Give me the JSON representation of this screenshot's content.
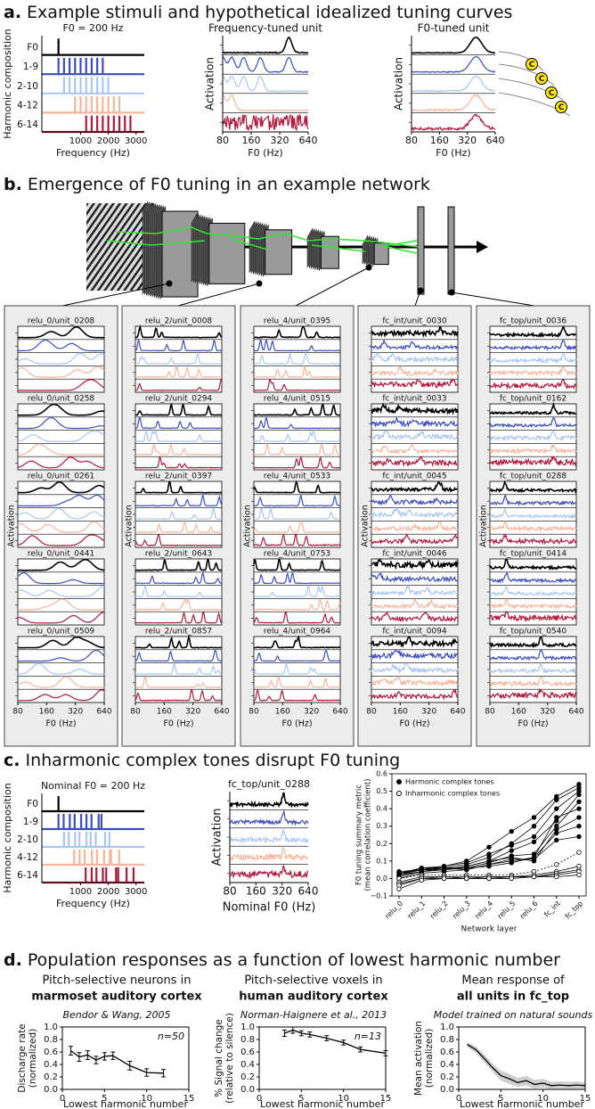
{
  "panels": [
    {
      "label": "a.",
      "heading": "Example stimuli and hypothetical idealized tuning curves"
    },
    {
      "label": "b.",
      "heading": "Emergence of F0 tuning in an example network"
    },
    {
      "label": "c.",
      "heading": "Inharmonic complex tones disrupt F0 tuning"
    },
    {
      "label": "d.",
      "heading": "Population responses as a function of lowest harmonic number"
    }
  ],
  "network": {
    "ylabel": "Activation",
    "xlabel": "F0 (Hz)",
    "xlim": [
      80,
      640
    ],
    "xscale": "log",
    "xticks": [
      80,
      160,
      320,
      640
    ],
    "colors": [
      "#000000",
      "#3b4cc0",
      "#a9c6f3",
      "#f5b59a",
      "#b2183c"
    ],
    "columns": [
      {
        "units": [
          "relu_0/unit_0208",
          "relu_0/unit_0258",
          "relu_0/unit_0261",
          "relu_0/unit_0441",
          "relu_0/unit_0509"
        ]
      },
      {
        "units": [
          "relu_2/unit_0008",
          "relu_2/unit_0294",
          "relu_2/unit_0397",
          "relu_2/unit_0643",
          "relu_2/unit_0857"
        ]
      },
      {
        "units": [
          "relu_4/unit_0395",
          "relu_4/unit_0515",
          "relu_4/unit_0533",
          "relu_4/unit_0753",
          "relu_4/unit_0964"
        ]
      },
      {
        "units": [
          "fc_int/unit_0030",
          "fc_int/unit_0033",
          "fc_int/unit_0045",
          "fc_int/unit_0046",
          "fc_int/unit_0094"
        ]
      },
      {
        "units": [
          "fc_top/unit_0036",
          "fc_top/unit_0162",
          "fc_top/unit_0288",
          "fc_top/unit_0414",
          "fc_top/unit_0540"
        ]
      }
    ]
  },
  "chart_data": [
    {
      "type": "stimulus",
      "title": "F0 = 200 Hz",
      "categories": [
        "F0",
        "1-9",
        "2-10",
        "4-12",
        "6-14"
      ],
      "harmonics": [
        [
          1,
          1
        ],
        [
          1,
          9
        ],
        [
          2,
          10
        ],
        [
          4,
          12
        ],
        [
          6,
          14
        ]
      ],
      "f0": 200,
      "colors": [
        "#000000",
        "#3b4cc0",
        "#a9c6f3",
        "#f5b59a",
        "#b2183c"
      ],
      "xlim": [
        -400,
        3300
      ],
      "xticks": [
        1000,
        2000,
        3000
      ],
      "xlabel": "Frequency (Hz)",
      "ylabel": "Harmonic composition"
    },
    {
      "type": "tuning",
      "title": "Frequency-tuned unit",
      "ylabel": "Activation",
      "xlabel": "F0 (Hz)",
      "xlim": [
        80,
        640
      ],
      "xscale": "log",
      "xticks": [
        80,
        160,
        320,
        640
      ],
      "colors": [
        "#000000",
        "#3b4cc0",
        "#a9c6f3",
        "#f5b59a",
        "#b2183c"
      ]
    },
    {
      "type": "tuning",
      "title": "F0-tuned unit",
      "ylabel": "Activation",
      "xlabel": "F0 (Hz)",
      "xlim": [
        80,
        640
      ],
      "xscale": "log",
      "xticks": [
        80,
        160,
        320,
        640
      ],
      "colors": [
        "#000000",
        "#3b4cc0",
        "#a9c6f3",
        "#f5b59a",
        "#b2183c"
      ],
      "icon_labels": [
        "C",
        "C",
        "C",
        "C"
      ]
    },
    {
      "type": "stimulus",
      "title": "Nominal F0 = 200 Hz",
      "categories": [
        "F0",
        "1-9",
        "2-10",
        "4-12",
        "6-14"
      ],
      "harmonics": [
        [
          1,
          1
        ],
        [
          1,
          9
        ],
        [
          2,
          10
        ],
        [
          4,
          12
        ],
        [
          6,
          14
        ]
      ],
      "f0": 200,
      "jitter": true,
      "colors": [
        "#000000",
        "#3b4cc0",
        "#a9c6f3",
        "#f5b59a",
        "#b2183c"
      ],
      "xlim": [
        -400,
        3300
      ],
      "xticks": [
        1000,
        2000,
        3000
      ],
      "xlabel": "Frequency (Hz)",
      "ylabel": "Harmonic composition"
    },
    {
      "type": "tuning",
      "title": "fc_top/unit_0288",
      "ylabel": "Activation",
      "xlabel": "Nominal F0 (Hz)",
      "xlim": [
        80,
        640
      ],
      "xscale": "log",
      "xticks": [
        80,
        160,
        320,
        640
      ],
      "colors": [
        "#000000",
        "#3b4cc0",
        "#a9c6f3",
        "#f5b59a",
        "#b2183c"
      ]
    },
    {
      "type": "layers",
      "categories": [
        "relu_0",
        "relu_1",
        "relu_2",
        "relu_3",
        "relu_4",
        "relu_5",
        "relu_6",
        "fc_int",
        "fc_top"
      ],
      "ylabel": [
        "F0 tuning summary metric",
        "(mean correlation coefficient)"
      ],
      "xlabel": "Network layer",
      "ylim": [
        -0.1,
        0.6
      ],
      "yticks": [
        {
          "value": -0.1,
          "label": "−0.1"
        },
        {
          "value": 0,
          "label": "0.0"
        },
        0.1,
        0.2,
        0.3,
        0.4,
        0.5,
        0.6
      ],
      "legend": "upper left",
      "series": [
        {
          "name": "Harmonic complex tones",
          "marker": "filled",
          "color": "#000000",
          "styles": [
            "solid",
            "solid",
            "solid",
            "solid",
            "solid",
            "solid",
            "solid",
            "solid",
            "solid"
          ],
          "lines": [
            [
              0.03,
              0.06,
              0.07,
              0.1,
              0.18,
              0.27,
              0.35,
              0.47,
              0.54
            ],
            [
              0.02,
              0.05,
              0.06,
              0.08,
              0.12,
              0.2,
              0.3,
              0.45,
              0.52
            ],
            [
              0.04,
              0.05,
              0.07,
              0.09,
              0.14,
              0.19,
              0.24,
              0.4,
              0.5
            ],
            [
              0.01,
              0.04,
              0.05,
              0.07,
              0.1,
              0.16,
              0.21,
              0.33,
              0.48
            ],
            [
              0.02,
              0.06,
              0.06,
              0.06,
              0.09,
              0.13,
              0.14,
              0.3,
              0.44
            ],
            [
              0,
              0.03,
              0.04,
              0.05,
              0.08,
              0.1,
              0.12,
              0.35,
              0.4
            ],
            [
              0.03,
              0.05,
              0.05,
              0.07,
              0.1,
              0.12,
              0.1,
              0.28,
              0.35
            ],
            [
              0.01,
              0.04,
              0.05,
              0.06,
              0.07,
              0.09,
              0.12,
              0.26,
              0.3
            ],
            [
              0.02,
              0.04,
              0.06,
              0.05,
              0.08,
              0.11,
              0.11,
              0.22,
              0.24
            ]
          ]
        },
        {
          "name": "Inharmonic complex tones",
          "marker": "open",
          "color": "#000000",
          "styles": [
            "dotted",
            "solid",
            "solid",
            "solid",
            "solid"
          ],
          "lines": [
            [
              0,
              0.02,
              0.02,
              0.02,
              0.02,
              0.02,
              0.04,
              0.08,
              0.15
            ],
            [
              -0.02,
              0.01,
              0.01,
              0.01,
              0.01,
              0.01,
              0.02,
              0.04,
              0.07
            ],
            [
              -0.03,
              0,
              0.01,
              0,
              0.01,
              0.01,
              0.01,
              0.03,
              0.05
            ],
            [
              -0.04,
              0,
              0,
              0,
              0,
              0.01,
              0.01,
              0.02,
              0.04
            ],
            [
              -0.06,
              -0.01,
              0,
              0,
              0,
              0,
              0.01,
              0.01,
              0.02
            ]
          ]
        }
      ]
    },
    {
      "type": "errorline",
      "title": [
        "Pitch-selective neurons in",
        "marmoset auditory cortex",
        "Bendor & Wang, 2005"
      ],
      "annotation": "n=50",
      "x": [
        1,
        2,
        3,
        4,
        5,
        6,
        8,
        10,
        12
      ],
      "values": [
        0.62,
        0.52,
        0.55,
        0.47,
        0.53,
        0.54,
        0.38,
        0.27,
        0.26
      ],
      "errors": [
        0.07,
        0.07,
        0.07,
        0.06,
        0.06,
        0.06,
        0.07,
        0.06,
        0.06
      ],
      "xlim": [
        0,
        15
      ],
      "xticks": [
        0,
        5,
        10,
        15
      ],
      "ylim": [
        0,
        1
      ],
      "yticks": [
        {
          "value": 0,
          "label": "0.0"
        },
        0.2,
        0.4,
        0.6,
        0.8,
        {
          "value": 1,
          "label": "1.0"
        }
      ],
      "xlabel": "Lowest harmonic number",
      "ylabel": [
        "Discharge rate",
        "(normalized)"
      ]
    },
    {
      "type": "errorline",
      "title": [
        "Pitch-selective voxels in",
        "human auditory cortex",
        "Norman-Haignere et al., 2013"
      ],
      "annotation": "n=13",
      "x": [
        3,
        4,
        5,
        6,
        8,
        10,
        12,
        15
      ],
      "values": [
        0.9,
        0.95,
        0.9,
        0.88,
        0.82,
        0.75,
        0.64,
        0.58
      ],
      "errors": [
        0.05,
        0.05,
        0.04,
        0.04,
        0.04,
        0.04,
        0.04,
        0.04
      ],
      "xlim": [
        0,
        15
      ],
      "xticks": [
        0,
        5,
        10,
        15
      ],
      "ylim": [
        0,
        1
      ],
      "yticks": [
        {
          "value": 0,
          "label": "0.0"
        },
        0.2,
        0.4,
        0.6,
        0.8,
        {
          "value": 1,
          "label": "1.0"
        }
      ],
      "xlabel": "Lowest harmonic number",
      "ylabel": [
        "% Signal change",
        "(relative to silence)"
      ]
    },
    {
      "type": "errorline",
      "band": true,
      "title": [
        "Mean response of",
        "all units in fc_top",
        "Model trained on natural sounds"
      ],
      "x": [
        1,
        2,
        3,
        4,
        5,
        6,
        7,
        8,
        9,
        10,
        11,
        12,
        13,
        14,
        15
      ],
      "values": [
        0.72,
        0.64,
        0.5,
        0.35,
        0.22,
        0.17,
        0.11,
        0.14,
        0.08,
        0.1,
        0.06,
        0.07,
        0.06,
        0.07,
        0.06
      ],
      "errors": [
        0.04,
        0.05,
        0.06,
        0.07,
        0.08,
        0.08,
        0.07,
        0.08,
        0.07,
        0.07,
        0.06,
        0.06,
        0.06,
        0.06,
        0.05
      ],
      "xlim": [
        0,
        15
      ],
      "xticks": [
        0,
        5,
        10,
        15
      ],
      "ylim": [
        0,
        1
      ],
      "yticks": [
        {
          "value": 0,
          "label": "0.0"
        },
        0.2,
        0.4,
        0.6,
        0.8,
        {
          "value": 1,
          "label": "1.0"
        }
      ],
      "xlabel": "Lowest harmonic number",
      "ylabel": [
        "Mean activation",
        "(normalized)"
      ]
    }
  ]
}
